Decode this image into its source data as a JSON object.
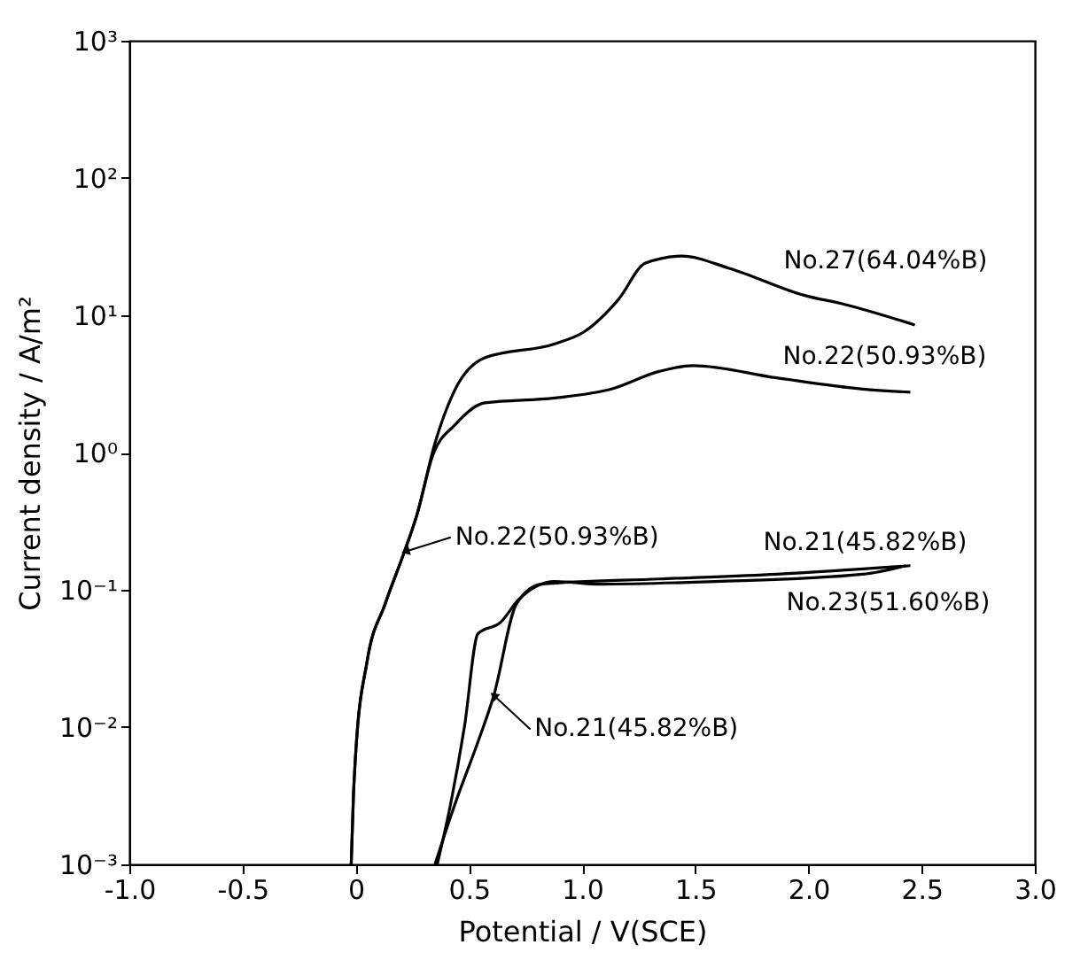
{
  "chart_data": {
    "type": "line",
    "xlabel": "Potential / V(SCE)",
    "ylabel": "Current density / A/m²",
    "log": "y",
    "grid": false,
    "marker": "none",
    "line_style": "solid",
    "xlim": [
      -1.0,
      3.0
    ],
    "xticks": [
      {
        "value": -1.0,
        "label": "-1.0"
      },
      {
        "value": -0.5,
        "label": "-0.5"
      },
      {
        "value": 0,
        "label": "0"
      },
      0.5,
      {
        "value": 1.0,
        "label": "1.0"
      },
      1.5,
      {
        "value": 2.0,
        "label": "2.0"
      },
      2.5,
      {
        "value": 3.0,
        "label": "3.0"
      }
    ],
    "ylim": [
      0.001,
      1000
    ],
    "yticks": [
      {
        "value": 0.001,
        "label": "10⁻³"
      },
      {
        "value": 0.01,
        "label": "10⁻²"
      },
      {
        "value": 0.1,
        "label": "10⁻¹"
      },
      {
        "value": 1,
        "label": "10⁰"
      },
      {
        "value": 10,
        "label": "10¹"
      },
      {
        "value": 100,
        "label": "10²"
      },
      {
        "value": 1000,
        "label": "10³"
      }
    ],
    "series": [
      {
        "color": "#000000",
        "x": [
          -0.02,
          -0.01,
          0.0,
          0.05,
          0.13,
          0.21,
          0.27,
          0.35,
          0.44,
          0.57,
          0.88,
          1.01,
          1.16,
          1.28,
          1.44,
          1.65,
          1.98,
          2.16,
          2.47
        ],
        "values": [
          0.001,
          0.0032,
          0.0065,
          0.03,
          0.079,
          0.18,
          0.35,
          1.17,
          2.9,
          4.9,
          6.2,
          7.6,
          13,
          24,
          27,
          22,
          14,
          12,
          8.5
        ]
      },
      {
        "color": "#000000",
        "x": [
          -0.02,
          -0.01,
          0.0,
          0.05,
          0.13,
          0.21,
          0.27,
          0.34,
          0.44,
          0.57,
          0.88,
          1.13,
          1.34,
          1.49,
          1.86,
          2.24,
          2.45
        ],
        "values": [
          0.001,
          0.0032,
          0.0065,
          0.03,
          0.079,
          0.18,
          0.35,
          0.95,
          1.6,
          2.3,
          2.5,
          2.9,
          3.9,
          4.3,
          3.5,
          2.9,
          2.75
        ]
      },
      {
        "color": "#000000",
        "x": [
          0.35,
          0.44,
          0.54,
          0.61,
          0.71,
          0.82,
          1.34,
          1.86,
          2.45
        ],
        "values": [
          0.001,
          0.0028,
          0.0078,
          0.017,
          0.079,
          0.11,
          0.12,
          0.13,
          0.15
        ]
      },
      {
        "color": "#000000",
        "x": [
          0.36,
          0.42,
          0.48,
          0.54,
          0.64,
          0.72,
          0.88,
          1.08,
          1.59,
          2.24,
          2.43
        ],
        "values": [
          0.001,
          0.0028,
          0.01,
          0.048,
          0.058,
          0.085,
          0.115,
          0.11,
          0.115,
          0.13,
          0.15
        ]
      }
    ],
    "annotations": [
      {
        "text": "No.27(64.04%B)",
        "x": 2.47,
        "y": 8.5
      },
      {
        "text": "No.22(50.93%B)",
        "x": 2.45,
        "y": 2.75
      },
      {
        "text": "No.22(50.93%B)",
        "x": 0.22,
        "y": 0.19
      },
      {
        "text": "No.21(45.82%B)",
        "x": 2.45,
        "y": 0.15
      },
      {
        "text": "No.23(51.60%B)",
        "x": 2.45,
        "y": 0.15
      },
      {
        "text": "No.21(45.82%B)",
        "x": 0.61,
        "y": 0.017
      }
    ]
  }
}
